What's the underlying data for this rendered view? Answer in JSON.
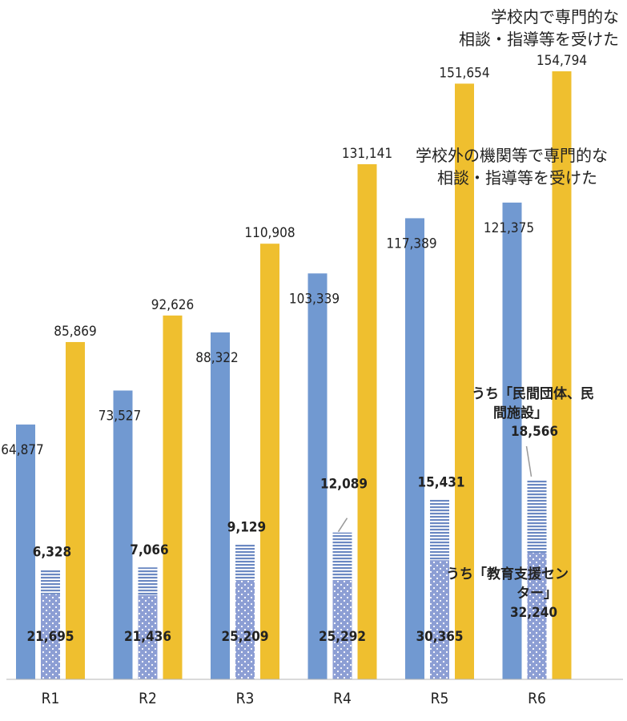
{
  "chart_data": {
    "type": "bar",
    "categories": [
      "R1",
      "R2",
      "R3",
      "R4",
      "R5",
      "R6"
    ],
    "series": [
      {
        "name": "学校外の機関等で専門的な相談・指導等を受けた",
        "values": [
          64877,
          73527,
          88322,
          103339,
          117389,
          121375
        ],
        "labels": [
          "64,877",
          "73,527",
          "88,322",
          "103,339",
          "117,389",
          "121,375"
        ],
        "color": "#7199d1"
      },
      {
        "name": "学校内で専門的な相談・指導等を受けた",
        "values": [
          85869,
          92626,
          110908,
          131141,
          151654,
          154794
        ],
        "labels": [
          "85,869",
          "92,626",
          "110,908",
          "131,141",
          "151,654",
          "154,794"
        ],
        "color": "#efbf2f"
      }
    ],
    "stack": {
      "lower": {
        "name": "うち「教育支援センター」",
        "values": [
          21695,
          21436,
          25209,
          25292,
          30365,
          32240
        ],
        "labels": [
          "21,695",
          "21,436",
          "25,209",
          "25,292",
          "30,365",
          "32,240"
        ],
        "color": "#8c9ed4"
      },
      "upper": {
        "name": "うち「民間団体、民間施設」",
        "values": [
          6328,
          7066,
          9129,
          12089,
          15431,
          18566
        ],
        "labels": [
          "6,328",
          "7,066",
          "9,129",
          "12,089",
          "15,431",
          "18,566"
        ],
        "color": "#6b88c2"
      }
    },
    "ylim": [
      0,
      165000
    ],
    "grid": false,
    "legend": "none",
    "annotations": {
      "inside_lines": [
        "学校内で専門的な",
        "相談・指導等を受けた"
      ],
      "outside_lines": [
        "学校外の機関等で専門的な",
        "相談・指導等を受けた"
      ],
      "private_lines": [
        "うち「民間団体、民",
        "間施設」"
      ],
      "center_lines": [
        "うち「教育支援セン",
        "ター」"
      ]
    }
  }
}
